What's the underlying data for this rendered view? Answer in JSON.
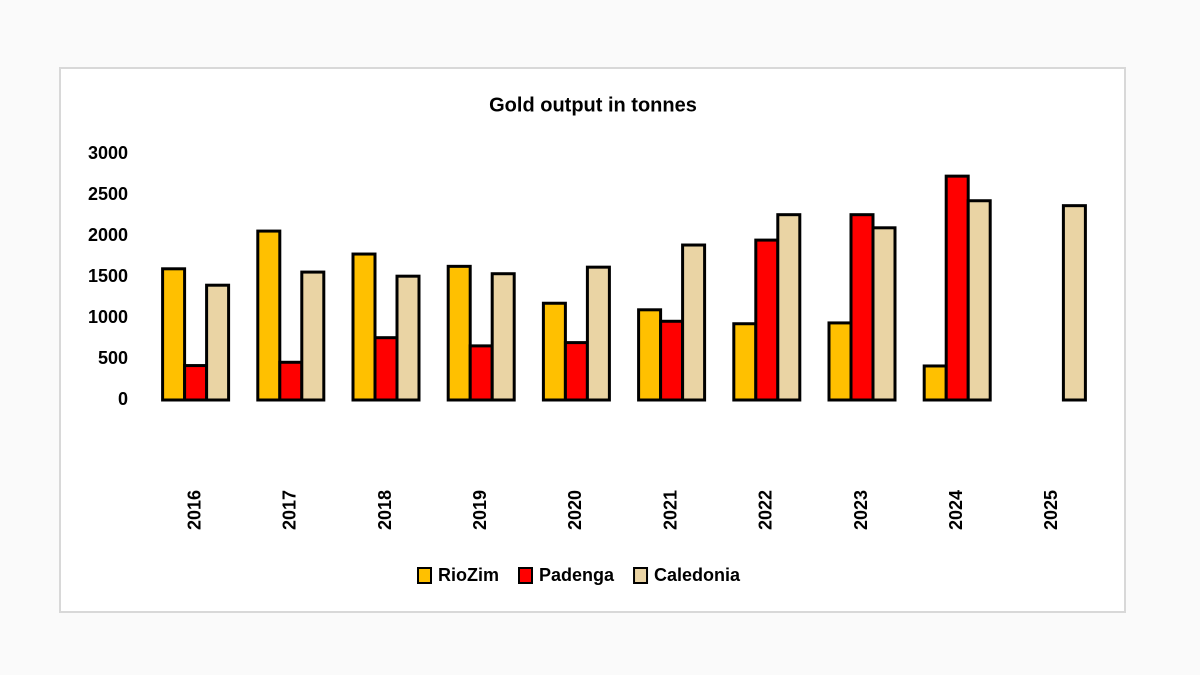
{
  "chart_data": {
    "type": "bar",
    "title": "Gold output in tonnes",
    "categories": [
      "2016",
      "2017",
      "2018",
      "2019",
      "2020",
      "2021",
      "2022",
      "2023",
      "2024",
      "2025"
    ],
    "series": [
      {
        "name": "RioZim",
        "color": "#ffc000",
        "values": [
          1600,
          2060,
          1780,
          1630,
          1180,
          1100,
          930,
          940,
          415,
          null
        ]
      },
      {
        "name": "Padenga",
        "color": "#ff0000",
        "values": [
          420,
          460,
          760,
          660,
          700,
          960,
          1950,
          2260,
          2730,
          null
        ]
      },
      {
        "name": "Caledonia",
        "color": "#ead4a4",
        "values": [
          1400,
          1560,
          1510,
          1540,
          1620,
          1890,
          2260,
          2100,
          2430,
          2370
        ]
      }
    ],
    "ylim": [
      0,
      3000
    ],
    "yticks": [
      0,
      500,
      1000,
      1500,
      2000,
      2500,
      3000
    ],
    "grid": false,
    "legend": "bottom"
  }
}
